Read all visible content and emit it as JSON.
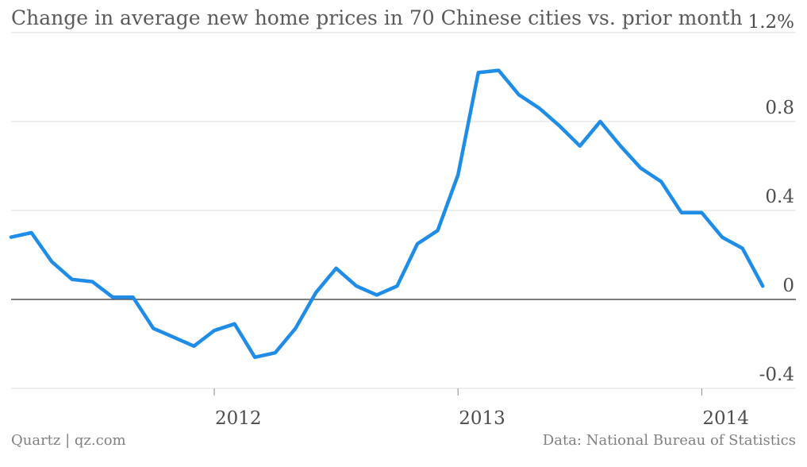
{
  "chart_data": {
    "type": "line",
    "title": "Change in average new home prices in 70 Chinese cities vs. prior month",
    "x": [
      "2011-03",
      "2011-04",
      "2011-05",
      "2011-06",
      "2011-07",
      "2011-08",
      "2011-09",
      "2011-10",
      "2011-11",
      "2011-12",
      "2012-01",
      "2012-02",
      "2012-03",
      "2012-04",
      "2012-05",
      "2012-06",
      "2012-07",
      "2012-08",
      "2012-09",
      "2012-10",
      "2012-11",
      "2012-12",
      "2013-01",
      "2013-02",
      "2013-03",
      "2013-04",
      "2013-05",
      "2013-06",
      "2013-07",
      "2013-08",
      "2013-09",
      "2013-10",
      "2013-11",
      "2013-12",
      "2014-01",
      "2014-02",
      "2014-03",
      "2014-04"
    ],
    "series": [
      {
        "values": [
          0.28,
          0.3,
          0.17,
          0.09,
          0.08,
          0.01,
          0.01,
          -0.13,
          -0.17,
          -0.21,
          -0.14,
          -0.11,
          -0.26,
          -0.24,
          -0.13,
          0.03,
          0.14,
          0.06,
          0.02,
          0.06,
          0.25,
          0.31,
          0.56,
          1.02,
          1.03,
          0.92,
          0.86,
          0.78,
          0.69,
          0.8,
          0.69,
          0.59,
          0.53,
          0.39,
          0.39,
          0.28,
          0.23,
          0.06
        ]
      }
    ],
    "yticks": [
      "1.2%",
      "0.8",
      "0.4",
      "0",
      "-0.4"
    ],
    "ytick_values": [
      1.2,
      0.8,
      0.4,
      0,
      -0.4
    ],
    "xticks": [
      "2012",
      "2013",
      "2014"
    ],
    "ylim": [
      -0.4,
      1.2
    ],
    "line_color": "#1f8de8",
    "grid": true
  },
  "footer": {
    "source_left": "Quartz | qz.com",
    "source_right": "Data: National Bureau of Statistics"
  }
}
